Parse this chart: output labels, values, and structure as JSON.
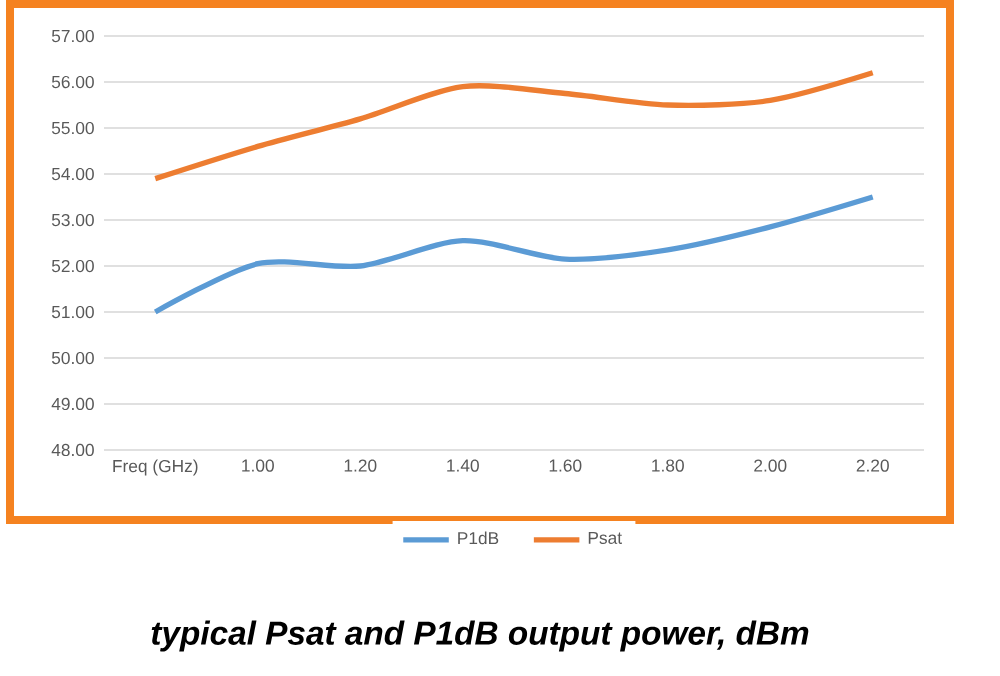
{
  "chart_data": {
    "type": "line",
    "categories": [
      "Freq (GHz)",
      "1.00",
      "1.20",
      "1.40",
      "1.60",
      "1.80",
      "2.00",
      "2.20"
    ],
    "series": [
      {
        "name": "P1dB",
        "color": "#5b9bd5",
        "values": [
          51.0,
          52.05,
          52.0,
          52.55,
          52.15,
          52.35,
          52.85,
          53.5
        ]
      },
      {
        "name": "Psat",
        "color": "#ed7d31",
        "values": [
          53.9,
          54.6,
          55.2,
          55.9,
          55.75,
          55.5,
          55.6,
          56.2
        ]
      }
    ],
    "ylim": [
      48,
      57
    ],
    "yticks": [
      {
        "value": 48,
        "label": "48.00"
      },
      {
        "value": 49,
        "label": "49.00"
      },
      {
        "value": 50,
        "label": "50.00"
      },
      {
        "value": 51,
        "label": "51.00"
      },
      {
        "value": 52,
        "label": "52.00"
      },
      {
        "value": 53,
        "label": "53.00"
      },
      {
        "value": 54,
        "label": "54.00"
      },
      {
        "value": 55,
        "label": "55.00"
      },
      {
        "value": 56,
        "label": "56.00"
      },
      {
        "value": 57,
        "label": "57.00"
      }
    ],
    "grid": "y",
    "legend": "bottom",
    "annotations": [
      "typical Psat and P1dB output power, dBm"
    ]
  }
}
